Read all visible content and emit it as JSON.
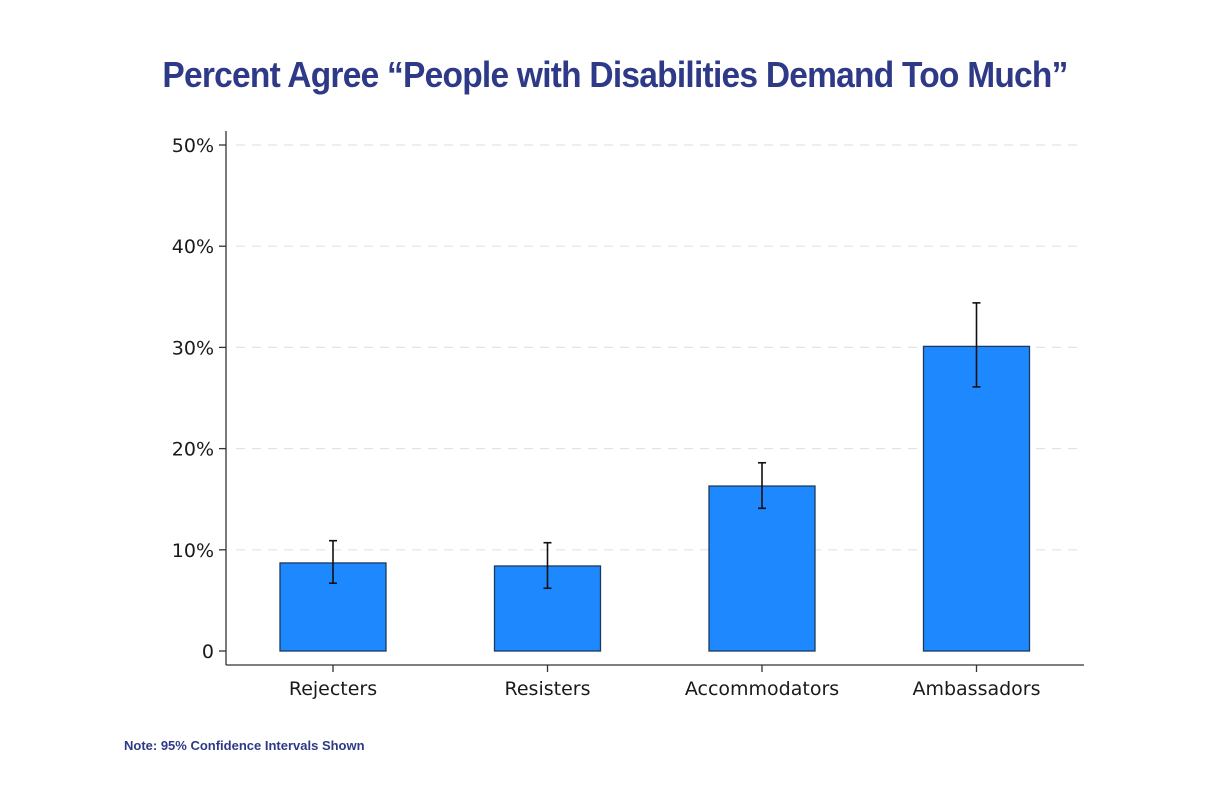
{
  "colors": {
    "title": "#2e3a87",
    "note": "#2e3a87",
    "bar_fill": "#1e88ff",
    "bar_stroke": "#1b3a5c",
    "axis": "#333333",
    "grid": "#e3e3e3",
    "error_bar": "#111111"
  },
  "chart_data": {
    "type": "bar",
    "title": "Percent Agree “People with Disabilities Demand Too Much”",
    "xlabel": "",
    "ylabel": "",
    "categories": [
      "Rejecters",
      "Resisters",
      "Accommodators",
      "Ambassadors"
    ],
    "values": [
      8.7,
      8.4,
      16.3,
      30.1
    ],
    "ci_low": [
      6.7,
      6.2,
      14.1,
      26.1
    ],
    "ci_high": [
      10.9,
      10.7,
      18.6,
      34.4
    ],
    "ylim": [
      0,
      51
    ],
    "yticks": [
      0,
      10,
      20,
      30,
      40,
      50
    ],
    "ytick_labels": [
      "0",
      "10%",
      "20%",
      "30%",
      "40%",
      "50%"
    ],
    "grid": "horizontal dashed",
    "legend": "none",
    "note": "Note: 95% Confidence Intervals Shown"
  }
}
